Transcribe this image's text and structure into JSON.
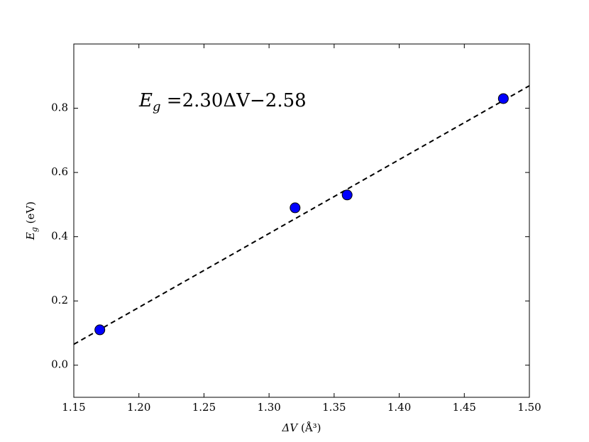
{
  "chart_data": {
    "type": "scatter",
    "annotation": {
      "main": "E",
      "sub": "g",
      "rest": " =2.30ΔV−2.58"
    },
    "x_label": {
      "main": "ΔV",
      "rest": " (Å³)"
    },
    "y_label": {
      "main": "E",
      "sub": "g",
      "rest": " (eV)"
    },
    "series": [
      {
        "x": [
          1.17,
          1.32,
          1.36,
          1.48
        ],
        "values": [
          0.11,
          0.49,
          0.53,
          0.83
        ],
        "color": "#0000ff",
        "style": "marker"
      },
      {
        "x": [
          1.15,
          1.5
        ],
        "values": [
          0.065,
          0.87
        ],
        "color": "#000000",
        "style": "dashed"
      }
    ],
    "xlim": [
      1.15,
      1.5
    ],
    "xticks": [
      1.15,
      {
        "value": 1.2,
        "label": "1.20"
      },
      1.25,
      {
        "value": 1.3,
        "label": "1.30"
      },
      1.35,
      {
        "value": 1.4,
        "label": "1.40"
      },
      1.45,
      {
        "value": 1.5,
        "label": "1.50"
      }
    ],
    "ylim": [
      -0.1,
      1.0
    ],
    "yticks": [
      {
        "value": 0,
        "label": "0.0"
      },
      0.2,
      0.4,
      0.6,
      0.8
    ],
    "grid": false
  }
}
